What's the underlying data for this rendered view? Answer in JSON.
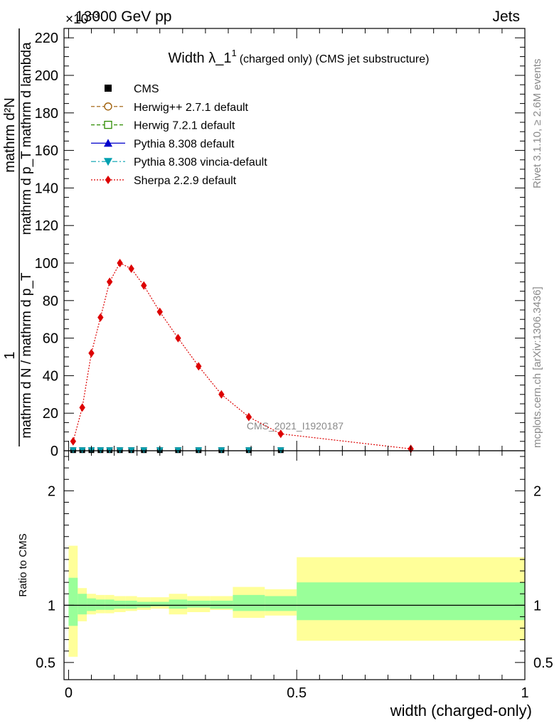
{
  "header": {
    "left": "13000 GeV pp",
    "right": "Jets"
  },
  "exponent_label": "×10",
  "exponent_power": "−3",
  "side_labels": {
    "rivet": "Rivet 3.1.10, ≥ 2.6M events",
    "mcplots": "mcplots.cern.ch [arXiv:1306.3436]"
  },
  "watermark": "CMS_2021_I1920187",
  "plot_title": {
    "main": "Width λ_1",
    "sup": "1",
    "sub": "(charged only) (CMS jet substructure)"
  },
  "ylabel_main": {
    "numerator": "mathrm d²N",
    "denominator": "mathrm d p_T mathrm d lambda",
    "sub_T": "T",
    "prefix_num": "1",
    "prefix_den": "mathrm d N / mathrm d p_T",
    "sub_T2": "T"
  },
  "ylabel_ratio": "Ratio to CMS",
  "xlabel": "width (charged-only)",
  "legend": [
    {
      "label": "CMS",
      "color": "#000000",
      "marker": "square",
      "line": "none"
    },
    {
      "label": "Herwig++ 2.7.1 default",
      "color": "#9c5a00",
      "marker": "circle-open",
      "line": "dashed"
    },
    {
      "label": "Herwig 7.2.1 default",
      "color": "#2e8b00",
      "marker": "square-open",
      "line": "dashed"
    },
    {
      "label": "Pythia 8.308 default",
      "color": "#0000cc",
      "marker": "triangle-up",
      "line": "solid"
    },
    {
      "label": "Pythia 8.308 vincia-default",
      "color": "#00a0b0",
      "marker": "triangle-down",
      "line": "dashdot"
    },
    {
      "label": "Sherpa 2.2.9 default",
      "color": "#dd0000",
      "marker": "diamond",
      "line": "dotted"
    }
  ],
  "chart_data": {
    "type": "line",
    "x_edges": [
      0.0,
      0.02,
      0.04,
      0.06,
      0.08,
      0.1,
      0.125,
      0.15,
      0.18,
      0.22,
      0.26,
      0.31,
      0.36,
      0.43,
      0.5,
      1.0
    ],
    "xlim": [
      -0.01,
      1.0
    ],
    "main_ylim": [
      0,
      225
    ],
    "main_yticks": [
      0,
      20,
      40,
      60,
      80,
      100,
      120,
      140,
      160,
      180,
      200,
      220
    ],
    "ratio_ylim": [
      0.35,
      2.35
    ],
    "ratio_yticks": [
      0.5,
      1,
      2
    ],
    "xticks": [
      0,
      0.5,
      1
    ],
    "xtick_labels": [
      "0",
      "0.5",
      "1"
    ],
    "series": [
      {
        "name": "Sherpa 2.2.9 default",
        "x": [
          0.01,
          0.03,
          0.05,
          0.07,
          0.09,
          0.1125,
          0.1375,
          0.165,
          0.2,
          0.24,
          0.285,
          0.335,
          0.395,
          0.465,
          0.75
        ],
        "y": [
          5,
          23,
          52,
          71,
          90,
          100,
          97,
          88,
          74,
          60,
          45,
          30,
          18,
          9,
          1
        ]
      },
      {
        "name": "CMS",
        "x": [
          0.01,
          0.03,
          0.05,
          0.07,
          0.09,
          0.1125,
          0.1375,
          0.165,
          0.2,
          0.24,
          0.285,
          0.335,
          0.395,
          0.465
        ],
        "y": [
          0.3,
          0.3,
          0.3,
          0.3,
          0.3,
          0.3,
          0.3,
          0.3,
          0.3,
          0.3,
          0.3,
          0.3,
          0.3,
          0.3
        ]
      },
      {
        "name": "Pythia 8.308 vincia-default",
        "x": [
          0.01,
          0.03,
          0.05,
          0.07,
          0.09,
          0.1125,
          0.1375,
          0.165,
          0.2,
          0.24,
          0.285,
          0.335,
          0.395,
          0.465
        ],
        "y": [
          0.3,
          0.3,
          0.3,
          0.3,
          0.3,
          0.3,
          0.3,
          0.3,
          0.3,
          0.3,
          0.3,
          0.3,
          0.3,
          0.3
        ]
      }
    ],
    "ratio_bands": {
      "stat_low": [
        0.82,
        0.92,
        0.95,
        0.96,
        0.96,
        0.97,
        0.97,
        0.98,
        0.99,
        0.97,
        0.98,
        0.97,
        0.95,
        0.95,
        0.87
      ],
      "stat_high": [
        1.24,
        1.1,
        1.06,
        1.05,
        1.05,
        1.04,
        1.04,
        1.03,
        1.03,
        1.05,
        1.04,
        1.04,
        1.09,
        1.08,
        1.2
      ],
      "total_low": [
        0.55,
        0.86,
        0.92,
        0.93,
        0.93,
        0.94,
        0.95,
        0.96,
        0.97,
        0.92,
        0.94,
        0.96,
        0.89,
        0.91,
        0.69
      ],
      "total_high": [
        1.52,
        1.15,
        1.1,
        1.09,
        1.09,
        1.08,
        1.08,
        1.07,
        1.07,
        1.1,
        1.08,
        1.08,
        1.16,
        1.14,
        1.42
      ]
    },
    "ratio_reference": 1
  }
}
